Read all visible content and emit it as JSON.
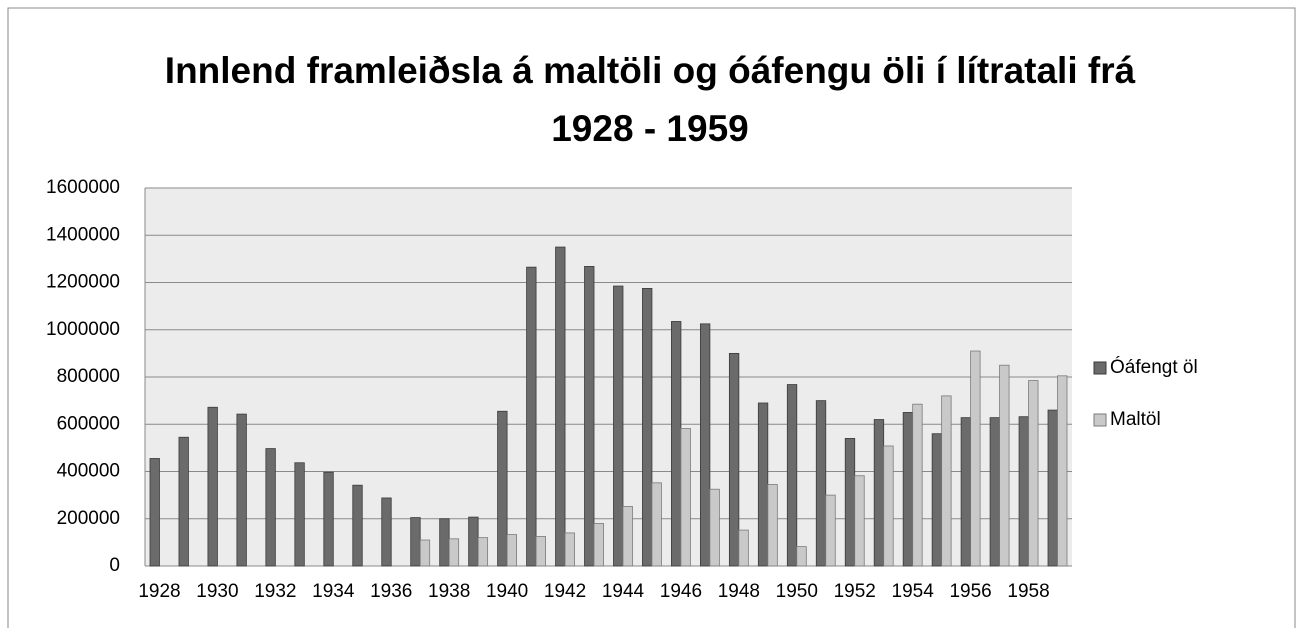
{
  "chart_data": {
    "type": "bar",
    "title": "Innlend framleiðsla á maltöli og óáfengu öli í lítratali frá 1928 - 1959",
    "categories": [
      1928,
      null,
      1930,
      null,
      1932,
      null,
      1934,
      null,
      1936,
      null,
      1938,
      null,
      1940,
      null,
      1942,
      null,
      1944,
      null,
      1946,
      null,
      1948,
      null,
      1950,
      null,
      1952,
      null,
      1954,
      null,
      1956,
      null,
      1958,
      null
    ],
    "series": [
      {
        "name": "Óáfengt öl",
        "color": "#6b6b6b",
        "values": [
          455000,
          545000,
          672000,
          643000,
          497000,
          437000,
          397000,
          342000,
          288000,
          205000,
          200000,
          207000,
          655000,
          1265000,
          1350000,
          1268000,
          1185000,
          1175000,
          1035000,
          1025000,
          900000,
          690000,
          768000,
          700000,
          540000,
          620000,
          650000,
          560000,
          628000,
          628000,
          632000,
          660000
        ]
      },
      {
        "name": "Maltöl",
        "color": "#c9c9c9",
        "values": [
          null,
          null,
          null,
          null,
          null,
          null,
          null,
          null,
          null,
          110000,
          115000,
          120000,
          133000,
          125000,
          140000,
          180000,
          252000,
          352000,
          582000,
          325000,
          152000,
          345000,
          82000,
          300000,
          382000,
          508000,
          685000,
          720000,
          910000,
          850000,
          785000,
          805000
        ]
      }
    ],
    "ylim": [
      0,
      1600000
    ],
    "yticks": [
      0,
      200000,
      400000,
      600000,
      800000,
      1000000,
      1200000,
      1400000,
      1600000
    ],
    "grid": true,
    "legend": "right"
  }
}
